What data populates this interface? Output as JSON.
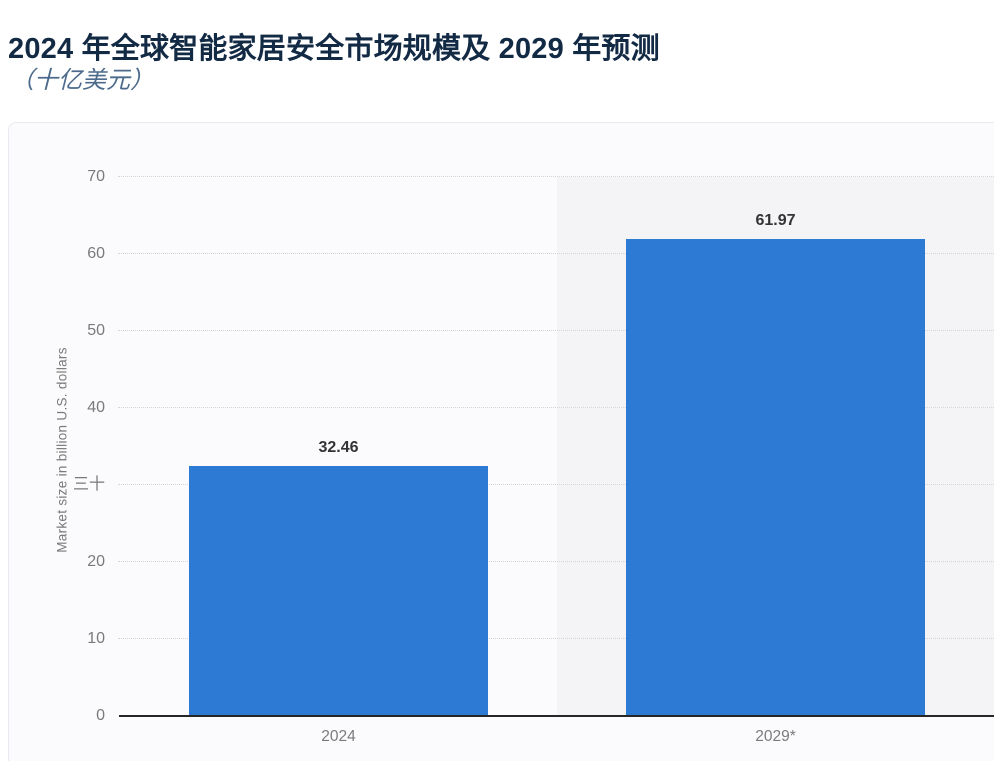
{
  "page": {
    "title": "2024 年全球智能家居安全市场规模及 2029 年预测",
    "subtitle": "（十亿美元）"
  },
  "chart_data": {
    "type": "bar",
    "title": "2024 年全球智能家居安全市场规模及 2029 年预测",
    "subtitle": "（十亿美元）",
    "categories": [
      "2024",
      "2029*"
    ],
    "values": [
      32.46,
      61.97
    ],
    "value_labels": [
      "32.46",
      "61.97"
    ],
    "xlabel": "",
    "ylabel": "Market size in billion U.S. dollars",
    "ylim": [
      0,
      70
    ],
    "yticks": [
      {
        "value": 70,
        "label": "70"
      },
      {
        "value": 60,
        "label": "60"
      },
      {
        "value": 50,
        "label": "50"
      },
      {
        "value": 40,
        "label": "40"
      },
      {
        "value": 30,
        "label": "三十"
      },
      {
        "value": 20,
        "label": "20"
      },
      {
        "value": 10,
        "label": "10"
      },
      {
        "value": 0,
        "label": "0"
      }
    ],
    "grid": "horizontal-dotted",
    "legend": "none",
    "highlight_band": {
      "category": "2029*",
      "color": "#f4f4f7"
    },
    "colors": {
      "bar": "#2d7ad5",
      "title": "#132a45",
      "subtitle": "#4c6a8b",
      "tick_label": "#7a7a7a",
      "value_label": "#333333",
      "axis_line": "#262626",
      "gridline": "#d4d4d4",
      "card_background": "#fbfbfd",
      "card_border": "#e9e9f1"
    }
  }
}
